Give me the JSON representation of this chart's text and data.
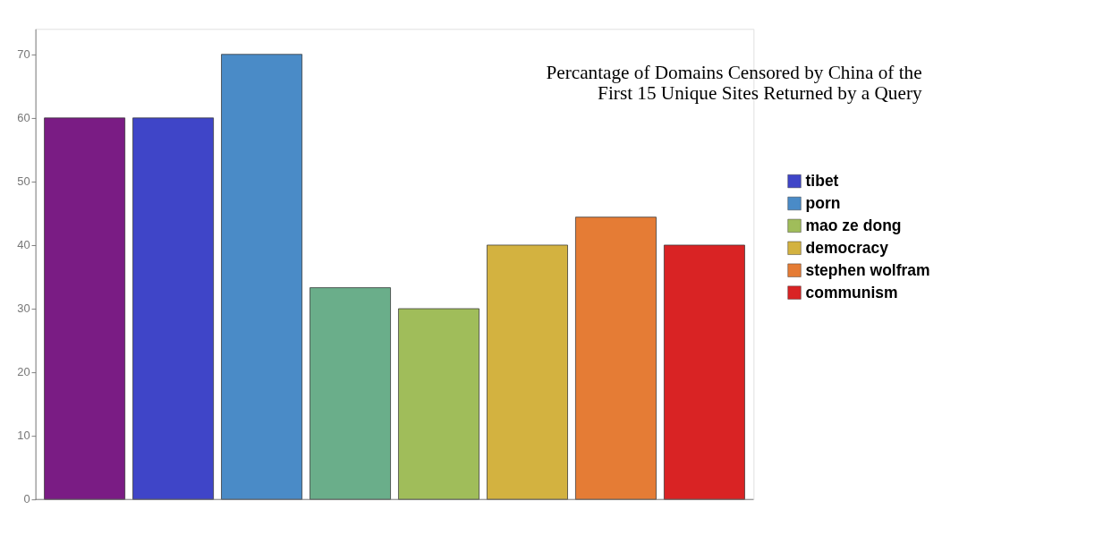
{
  "chart_data": {
    "type": "bar",
    "title": [
      "Percantage of Domains Censored by China of the",
      "First 15 Unique Sites Returned by a Query"
    ],
    "categories": [
      null,
      null,
      null,
      null,
      null,
      null,
      null,
      null
    ],
    "series": [
      {
        "color": "#7a1c84",
        "values": [
          60,
          null,
          null,
          null,
          null,
          null,
          null,
          null
        ]
      },
      {
        "name": "tibet",
        "color": "#3f45c8",
        "values": [
          null,
          60,
          null,
          null,
          null,
          null,
          null,
          null
        ]
      },
      {
        "name": "porn",
        "color": "#4a8bc7",
        "values": [
          null,
          null,
          70,
          null,
          null,
          null,
          null,
          null
        ]
      },
      {
        "color": "#6aae8a",
        "values": [
          null,
          null,
          null,
          33.3,
          null,
          null,
          null,
          null
        ]
      },
      {
        "name": "mao ze dong",
        "color": "#a0bd5a",
        "values": [
          null,
          null,
          null,
          null,
          30,
          null,
          null,
          null
        ]
      },
      {
        "name": "democracy",
        "color": "#d3b240",
        "values": [
          null,
          null,
          null,
          null,
          null,
          40,
          null,
          null
        ]
      },
      {
        "name": "stephen wolfram",
        "color": "#e57c35",
        "values": [
          null,
          null,
          null,
          null,
          null,
          null,
          44.4,
          null
        ]
      },
      {
        "name": "communism",
        "color": "#d92324",
        "values": [
          null,
          null,
          null,
          null,
          null,
          null,
          null,
          40
        ]
      }
    ],
    "ylim": [
      0,
      74
    ],
    "yticks": [
      0,
      10,
      20,
      30,
      40,
      50,
      60,
      70
    ],
    "grid": false,
    "legend": "right",
    "tick_labels": "y"
  }
}
